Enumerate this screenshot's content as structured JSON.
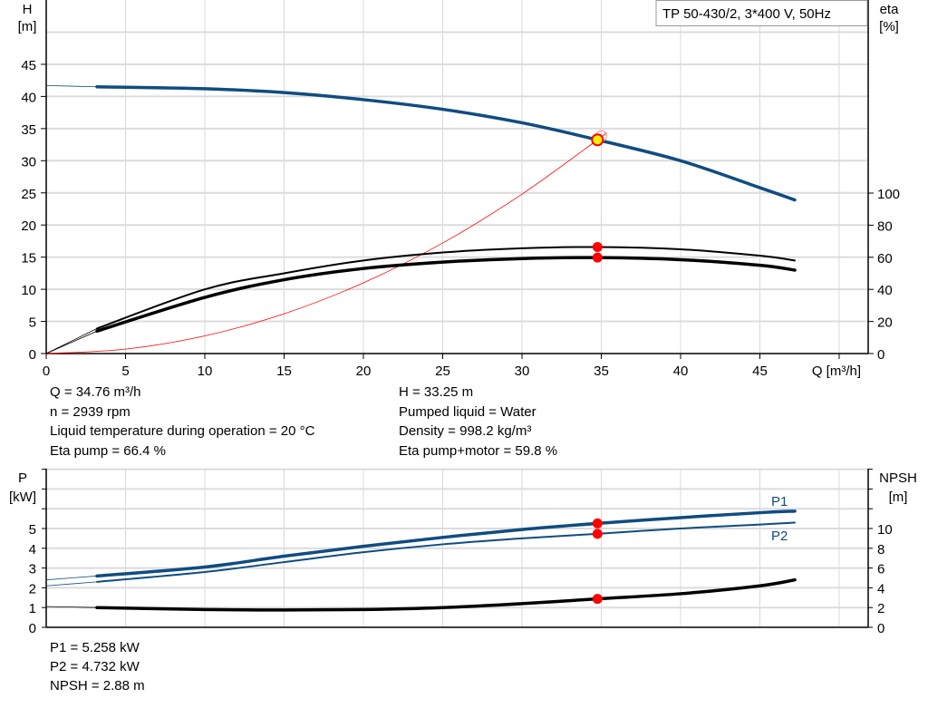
{
  "chart_data": [
    {
      "type": "line",
      "title_box": "TP 50-430/2, 3*400 V, 50Hz",
      "xlabel": "Q [m³/h]",
      "xlim": [
        0,
        52
      ],
      "xticks": [
        0,
        5,
        10,
        15,
        20,
        25,
        30,
        35,
        40,
        45
      ],
      "ylabel_left": [
        "H",
        "[m]"
      ],
      "ylim_left": [
        0,
        50
      ],
      "yticks_left": [
        0,
        5,
        10,
        15,
        20,
        25,
        30,
        35,
        40,
        45
      ],
      "ylabel_right": [
        "eta",
        "[%]"
      ],
      "ylim_right": [
        0,
        220
      ],
      "yticks_right": [
        0,
        20,
        40,
        60,
        80,
        100
      ],
      "grid": true,
      "series": [
        {
          "key": "H",
          "axis": "left",
          "color": "#0f4c81",
          "x": [
            0,
            3.2,
            10,
            15,
            20,
            25,
            30,
            34.76,
            40,
            45,
            47.2
          ],
          "y": [
            41.7,
            41.5,
            41.2,
            40.6,
            39.5,
            38,
            35.9,
            33.25,
            30,
            25.8,
            23.9
          ]
        },
        {
          "key": "eta_pump",
          "axis": "right",
          "color": "#000000",
          "x": [
            0,
            3.2,
            10,
            15,
            20,
            25,
            30,
            34.76,
            40,
            45,
            47.2
          ],
          "y": [
            0,
            15.6,
            40,
            50,
            58,
            63,
            65.6,
            66.4,
            65,
            61,
            58
          ]
        },
        {
          "key": "eta_pump_motor",
          "axis": "right",
          "color": "#000000",
          "x": [
            0,
            3.2,
            10,
            15,
            20,
            25,
            30,
            34.76,
            40,
            45,
            47.2
          ],
          "y": [
            0,
            14,
            35,
            46,
            53,
            57,
            59.2,
            59.8,
            58.5,
            55,
            52
          ]
        },
        {
          "key": "system_curve",
          "axis": "left",
          "color": "#ff0000",
          "x": [
            0,
            5,
            10,
            15,
            20,
            25,
            30,
            34.76,
            35.3
          ],
          "y": [
            0,
            0.69,
            2.75,
            6.19,
            11.0,
            17.2,
            24.8,
            33.25,
            34.3
          ]
        }
      ],
      "duty_point": {
        "Q": 34.76,
        "H": 33.25,
        "eta_pump": 66.4,
        "eta_pump_motor": 59.8
      }
    },
    {
      "type": "line",
      "xlim": [
        0,
        52
      ],
      "ylabel_left": [
        "P",
        "[kW]"
      ],
      "ylim_left": [
        0,
        8
      ],
      "yticks_left": [
        0,
        1,
        2,
        3,
        4,
        5
      ],
      "ylabel_right": [
        "NPSH",
        "[m]"
      ],
      "ylim_right": [
        0,
        16
      ],
      "yticks_right": [
        0,
        2,
        4,
        6,
        8,
        10
      ],
      "grid": true,
      "series": [
        {
          "name": "P1",
          "axis": "left",
          "color": "#0f4c81",
          "x": [
            0,
            3.2,
            10,
            15,
            20,
            25,
            30,
            34.76,
            40,
            45,
            47.2
          ],
          "y": [
            2.4,
            2.6,
            3.05,
            3.6,
            4.1,
            4.55,
            4.95,
            5.258,
            5.55,
            5.8,
            5.88
          ]
        },
        {
          "name": "P2",
          "axis": "left",
          "color": "#0f4c81",
          "x": [
            0,
            3.2,
            10,
            15,
            20,
            25,
            30,
            34.76,
            40,
            45,
            47.2
          ],
          "y": [
            2.1,
            2.3,
            2.8,
            3.3,
            3.8,
            4.2,
            4.5,
            4.732,
            5.0,
            5.2,
            5.3
          ]
        },
        {
          "key": "NPSH",
          "axis": "right",
          "color": "#000000",
          "x": [
            0,
            3.2,
            10,
            15,
            20,
            25,
            30,
            34.76,
            40,
            45,
            47.2
          ],
          "y": [
            2.1,
            2.0,
            1.8,
            1.75,
            1.8,
            2.0,
            2.4,
            2.88,
            3.4,
            4.2,
            4.8
          ]
        }
      ]
    }
  ],
  "info_top": {
    "left": [
      "Q = 34.76 m³/h",
      "n = 2939 rpm",
      "Liquid temperature during operation = 20 °C",
      "Eta pump = 66.4 %"
    ],
    "right": [
      "H = 33.25 m",
      "Pumped liquid = Water",
      "Density = 998.2 kg/m³",
      "Eta pump+motor = 59.8 %"
    ]
  },
  "info_bottom": [
    "P1 = 5.258 kW",
    "P2 = 4.732 kW",
    "NPSH = 2.88 m"
  ]
}
